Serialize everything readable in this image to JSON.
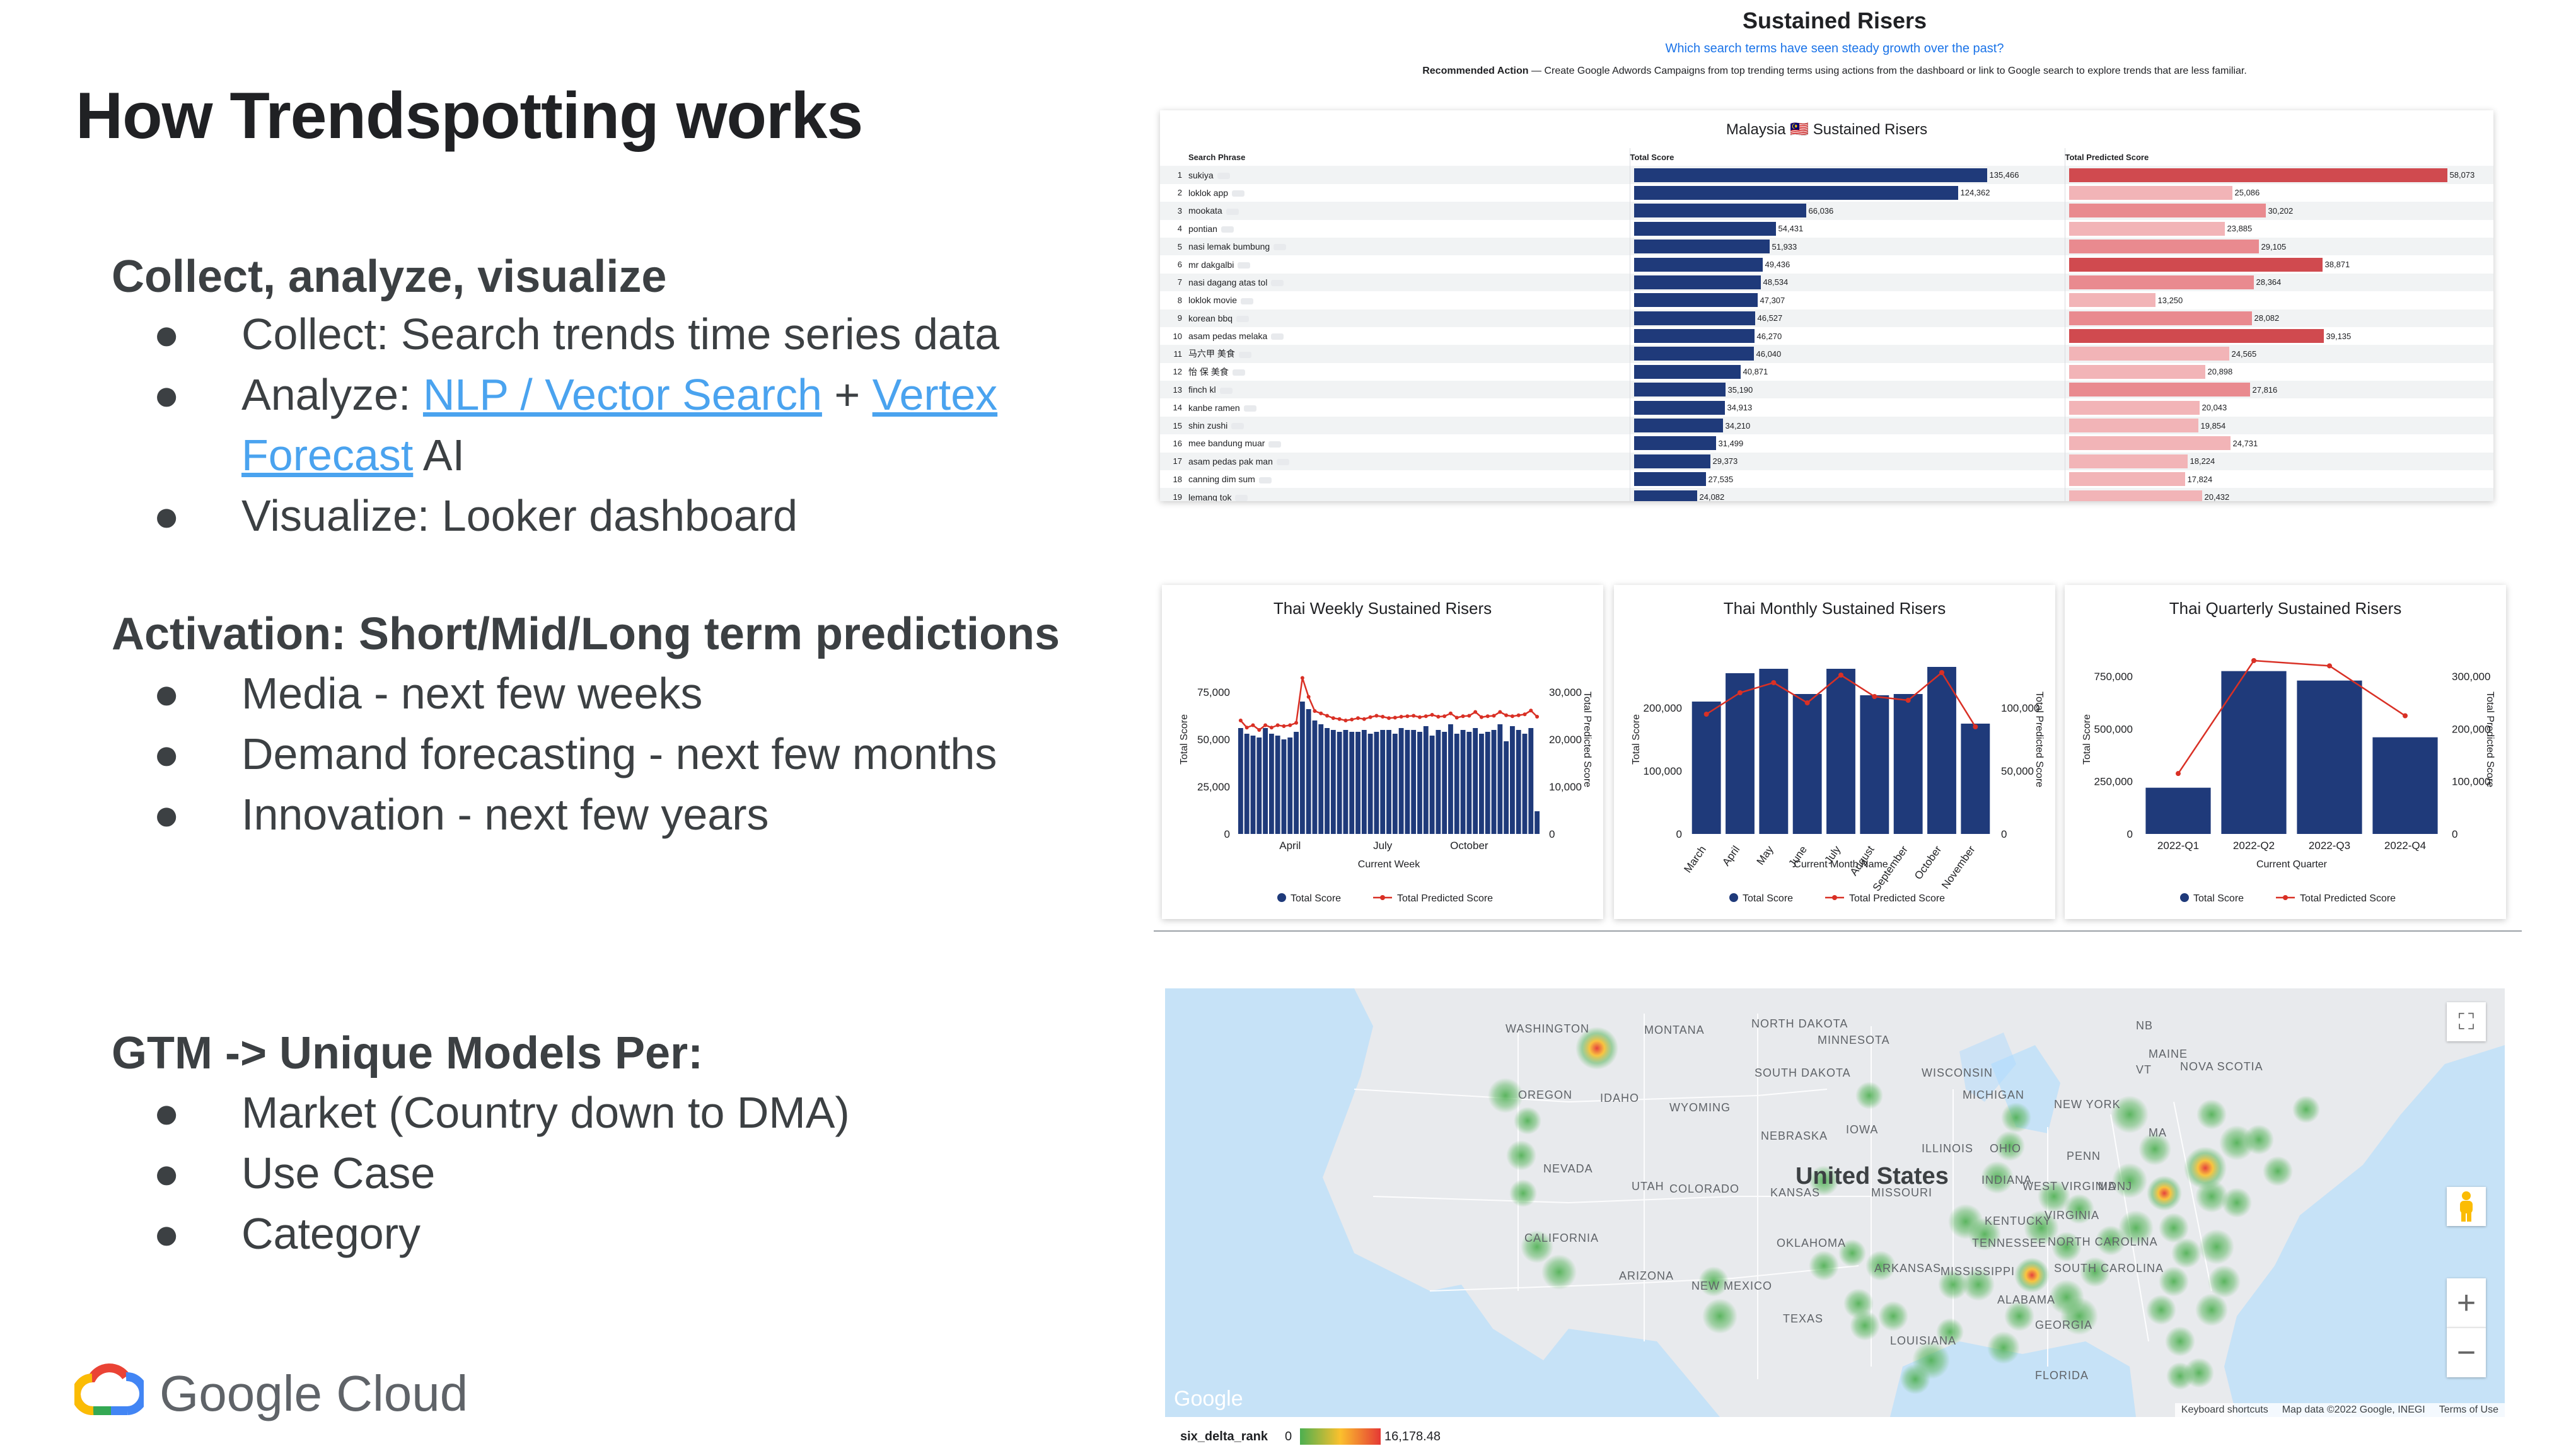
{
  "slide": {
    "title": "How Trendspotting works",
    "section1": {
      "heading": "Collect, analyze, visualize",
      "b1": "Collect: Search trends time series data",
      "b2_prefix": "Analyze: ",
      "b2_link1": "NLP / Vector Search",
      "b2_mid": " + ",
      "b2_link2a": "Vertex",
      "b2_link2b": "Forecast",
      "b2_suffix": " AI",
      "b3": "Visualize: Looker dashboard"
    },
    "section2": {
      "heading": "Activation: Short/Mid/Long term predictions",
      "b1": "Media - next few weeks",
      "b2": "Demand forecasting - next few months",
      "b3": "Innovation - next few years"
    },
    "section3": {
      "heading": "GTM -> Unique Models Per:",
      "b1": "Market (Country down to DMA)",
      "b2": "Use Case",
      "b3": "Category"
    },
    "bullet": "●",
    "logo_text": "Google Cloud"
  },
  "dashboard": {
    "title": "Sustained Risers",
    "subtitle": "Which search terms have seen steady growth over the past?",
    "action_label": "Recommended Action",
    "action_text": " — Create Google Adwords Campaigns from top trending terms using actions from the dashboard or link to Google search to explore trends that are less familiar.",
    "table": {
      "title": "Malaysia 🇲🇾 Sustained Risers",
      "col_phrase": "Search Phrase",
      "col_total": "Total Score",
      "col_pred": "Total Predicted Score",
      "max_total": 135466,
      "max_pred": 58073,
      "rows": [
        {
          "n": "1",
          "phrase": "sukiya",
          "total": 135466,
          "total_label": "135,466",
          "pred": 58073,
          "pred_label": "58,073"
        },
        {
          "n": "2",
          "phrase": "loklok app",
          "total": 124362,
          "total_label": "124,362",
          "pred": 25086,
          "pred_label": "25,086"
        },
        {
          "n": "3",
          "phrase": "mookata",
          "total": 66036,
          "total_label": "66,036",
          "pred": 30202,
          "pred_label": "30,202"
        },
        {
          "n": "4",
          "phrase": "pontian",
          "total": 54431,
          "total_label": "54,431",
          "pred": 23885,
          "pred_label": "23,885"
        },
        {
          "n": "5",
          "phrase": "nasi lemak bumbung",
          "total": 51933,
          "total_label": "51,933",
          "pred": 29105,
          "pred_label": "29,105"
        },
        {
          "n": "6",
          "phrase": "mr dakgalbi",
          "total": 49436,
          "total_label": "49,436",
          "pred": 38871,
          "pred_label": "38,871"
        },
        {
          "n": "7",
          "phrase": "nasi dagang atas tol",
          "total": 48534,
          "total_label": "48,534",
          "pred": 28364,
          "pred_label": "28,364"
        },
        {
          "n": "8",
          "phrase": "loklok movie",
          "total": 47307,
          "total_label": "47,307",
          "pred": 13250,
          "pred_label": "13,250"
        },
        {
          "n": "9",
          "phrase": "korean bbq",
          "total": 46527,
          "total_label": "46,527",
          "pred": 28082,
          "pred_label": "28,082"
        },
        {
          "n": "10",
          "phrase": "asam pedas melaka",
          "total": 46270,
          "total_label": "46,270",
          "pred": 39135,
          "pred_label": "39,135"
        },
        {
          "n": "11",
          "phrase": "马六甲 美食",
          "total": 46040,
          "total_label": "46,040",
          "pred": 24565,
          "pred_label": "24,565"
        },
        {
          "n": "12",
          "phrase": "怡 保 美食",
          "total": 40871,
          "total_label": "40,871",
          "pred": 20898,
          "pred_label": "20,898"
        },
        {
          "n": "13",
          "phrase": "finch kl",
          "total": 35190,
          "total_label": "35,190",
          "pred": 27816,
          "pred_label": "27,816"
        },
        {
          "n": "14",
          "phrase": "kanbe ramen",
          "total": 34913,
          "total_label": "34,913",
          "pred": 20043,
          "pred_label": "20,043"
        },
        {
          "n": "15",
          "phrase": "shin zushi",
          "total": 34210,
          "total_label": "34,210",
          "pred": 19854,
          "pred_label": "19,854"
        },
        {
          "n": "16",
          "phrase": "mee bandung muar",
          "total": 31499,
          "total_label": "31,499",
          "pred": 24731,
          "pred_label": "24,731"
        },
        {
          "n": "17",
          "phrase": "asam pedas pak man",
          "total": 29373,
          "total_label": "29,373",
          "pred": 18224,
          "pred_label": "18,224"
        },
        {
          "n": "18",
          "phrase": "canning dim sum",
          "total": 27535,
          "total_label": "27,535",
          "pred": 17824,
          "pred_label": "17,824"
        },
        {
          "n": "19",
          "phrase": "lemang tok",
          "total": 24082,
          "total_label": "24,082",
          "pred": 20432,
          "pred_label": "20,432"
        }
      ]
    }
  },
  "chart_data": [
    {
      "type": "bar",
      "title": "Thai Weekly Sustained Risers",
      "xlabel": "Current Week",
      "ylabel": "Total Score",
      "y2label": "Total Predicted Score",
      "ylim": [
        0,
        100000
      ],
      "y2lim": [
        0,
        40000
      ],
      "yticks": [
        "0",
        "25,000",
        "50,000",
        "75,000"
      ],
      "y2ticks": [
        "0",
        "10,000",
        "20,000",
        "30,000"
      ],
      "xticks": [
        "April",
        "July",
        "October"
      ],
      "series": [
        {
          "name": "Total Score",
          "values": [
            56000,
            53000,
            52000,
            51000,
            56000,
            53000,
            52000,
            50000,
            51000,
            54000,
            70000,
            66000,
            60000,
            58000,
            56000,
            55000,
            54000,
            55000,
            54000,
            54000,
            55000,
            53000,
            54000,
            55000,
            55000,
            53000,
            56000,
            55000,
            55000,
            54000,
            57000,
            52000,
            55000,
            54000,
            58000,
            53000,
            55000,
            54000,
            56000,
            53000,
            54000,
            55000,
            58000,
            49000,
            57000,
            55000,
            53000,
            56000,
            12000
          ]
        },
        {
          "name": "Total Predicted Score",
          "values": [
            24000,
            22500,
            23000,
            22000,
            23000,
            22500,
            23000,
            22800,
            23000,
            23500,
            33000,
            29000,
            26000,
            25500,
            25000,
            24500,
            24300,
            24000,
            24200,
            24500,
            24300,
            24700,
            25000,
            24800,
            24500,
            24600,
            24800,
            24900,
            25000,
            24700,
            24900,
            25200,
            24800,
            24900,
            25500,
            24600,
            24900,
            25000,
            25800,
            24700,
            24900,
            25000,
            25800,
            25100,
            24900,
            25100,
            25300,
            26100,
            24800
          ]
        }
      ],
      "legend": [
        "Total Score",
        "Total Predicted Score"
      ]
    },
    {
      "type": "bar",
      "title": "Thai Monthly Sustained Risers",
      "xlabel": "Current Month Name",
      "ylabel": "Total Score",
      "y2label": "Total Predicted Score",
      "ylim": [
        0,
        300000
      ],
      "y2lim": [
        0,
        150000
      ],
      "yticks": [
        "0",
        "100,000",
        "200,000"
      ],
      "y2ticks": [
        "0",
        "50,000",
        "100,000"
      ],
      "categories": [
        "March",
        "April",
        "May",
        "June",
        "July",
        "August",
        "September",
        "October",
        "November"
      ],
      "series": [
        {
          "name": "Total Score",
          "values": [
            210000,
            255000,
            262000,
            222000,
            262000,
            220000,
            222000,
            265000,
            175000
          ]
        },
        {
          "name": "Total Predicted Score",
          "values": [
            95000,
            112000,
            120000,
            104000,
            126000,
            109000,
            106000,
            128000,
            85000
          ]
        }
      ],
      "legend": [
        "Total Score",
        "Total Predicted Score"
      ]
    },
    {
      "type": "bar",
      "title": "Thai Quarterly Sustained Risers",
      "xlabel": "Current Quarter",
      "ylabel": "Total Score",
      "y2label": "Total Predicted Score",
      "ylim": [
        0,
        900000
      ],
      "y2lim": [
        0,
        360000
      ],
      "yticks": [
        "0",
        "250,000",
        "500,000",
        "750,000"
      ],
      "y2ticks": [
        "0",
        "100,000",
        "200,000",
        "300,000"
      ],
      "categories": [
        "2022-Q1",
        "2022-Q2",
        "2022-Q3",
        "2022-Q4"
      ],
      "series": [
        {
          "name": "Total Score",
          "values": [
            220000,
            775000,
            730000,
            460000
          ]
        },
        {
          "name": "Total Predicted Score",
          "values": [
            115000,
            330000,
            320000,
            225000
          ]
        }
      ],
      "legend": [
        "Total Score",
        "Total Predicted Score"
      ]
    }
  ],
  "map": {
    "country_label": "United States",
    "states": [
      {
        "name": "WASHINGTON"
      },
      {
        "name": "OREGON"
      },
      {
        "name": "IDAHO"
      },
      {
        "name": "MONTANA"
      },
      {
        "name": "WYOMING"
      },
      {
        "name": "NEVADA"
      },
      {
        "name": "UTAH"
      },
      {
        "name": "CALIFORNIA"
      },
      {
        "name": "ARIZONA"
      },
      {
        "name": "COLORADO"
      },
      {
        "name": "NEW MEXICO"
      },
      {
        "name": "NORTH DAKOTA"
      },
      {
        "name": "SOUTH DAKOTA"
      },
      {
        "name": "NEBRASKA"
      },
      {
        "name": "KANSAS"
      },
      {
        "name": "OKLAHOMA"
      },
      {
        "name": "TEXAS"
      },
      {
        "name": "MINNESOTA"
      },
      {
        "name": "IOWA"
      },
      {
        "name": "MISSOURI"
      },
      {
        "name": "ARKANSAS"
      },
      {
        "name": "LOUISIANA"
      },
      {
        "name": "WISCONSIN"
      },
      {
        "name": "ILLINOIS"
      },
      {
        "name": "MICHIGAN"
      },
      {
        "name": "INDIANA"
      },
      {
        "name": "OHIO"
      },
      {
        "name": "KENTUCKY"
      },
      {
        "name": "TENNESSEE"
      },
      {
        "name": "MISSISSIPPI"
      },
      {
        "name": "ALABAMA"
      },
      {
        "name": "GEORGIA"
      },
      {
        "name": "FLORIDA"
      },
      {
        "name": "WEST VIRGINIA"
      },
      {
        "name": "VIRGINIA"
      },
      {
        "name": "NORTH CAROLINA"
      },
      {
        "name": "SOUTH CAROLINA"
      },
      {
        "name": "PENN"
      },
      {
        "name": "NEW YORK"
      },
      {
        "name": "VT"
      },
      {
        "name": "MAINE"
      },
      {
        "name": "NOVA SCOTIA"
      },
      {
        "name": "NB"
      },
      {
        "name": "MD"
      },
      {
        "name": "NJ"
      },
      {
        "name": "MA"
      }
    ],
    "google_logo": "Google",
    "attribution": [
      "Keyboard shortcuts",
      "Map data ©2022 Google, INEGI",
      "Terms of Use"
    ],
    "zoom_in": "+",
    "zoom_out": "−",
    "fullscreen_icon": "⛶",
    "legend": {
      "label": "six_delta_rank",
      "min": "0",
      "max": "16,178.48"
    }
  }
}
